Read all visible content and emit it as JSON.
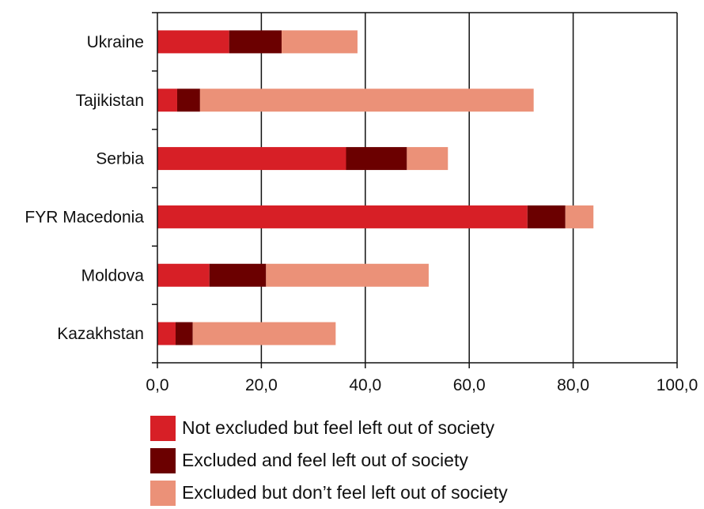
{
  "chart_data": {
    "type": "bar",
    "orientation": "horizontal",
    "stacked": true,
    "categories": [
      "Ukraine",
      "Tajikistan",
      "Serbia",
      "FYR Macedonia",
      "Moldova",
      "Kazakhstan"
    ],
    "series": [
      {
        "name": "Not excluded but feel left out of society",
        "color": "#d71f26",
        "values": [
          13.8,
          3.8,
          36.3,
          71.2,
          10.0,
          3.5
        ]
      },
      {
        "name": "Excluded and feel left out of society",
        "color": "#6b0000",
        "values": [
          10.1,
          4.4,
          11.7,
          7.3,
          10.9,
          3.3
        ]
      },
      {
        "name": "Excluded but don’t feel left out of society",
        "color": "#eb9178",
        "values": [
          14.6,
          64.2,
          7.9,
          5.4,
          31.3,
          27.5
        ]
      }
    ],
    "xlim": [
      0,
      100
    ],
    "xticks": [
      0,
      20,
      40,
      60,
      80,
      100
    ],
    "xtick_labels": [
      "0,0",
      "20,0",
      "40,0",
      "60,0",
      "80,0",
      "100,0"
    ],
    "grid": "vertical",
    "legend_position": "bottom"
  }
}
